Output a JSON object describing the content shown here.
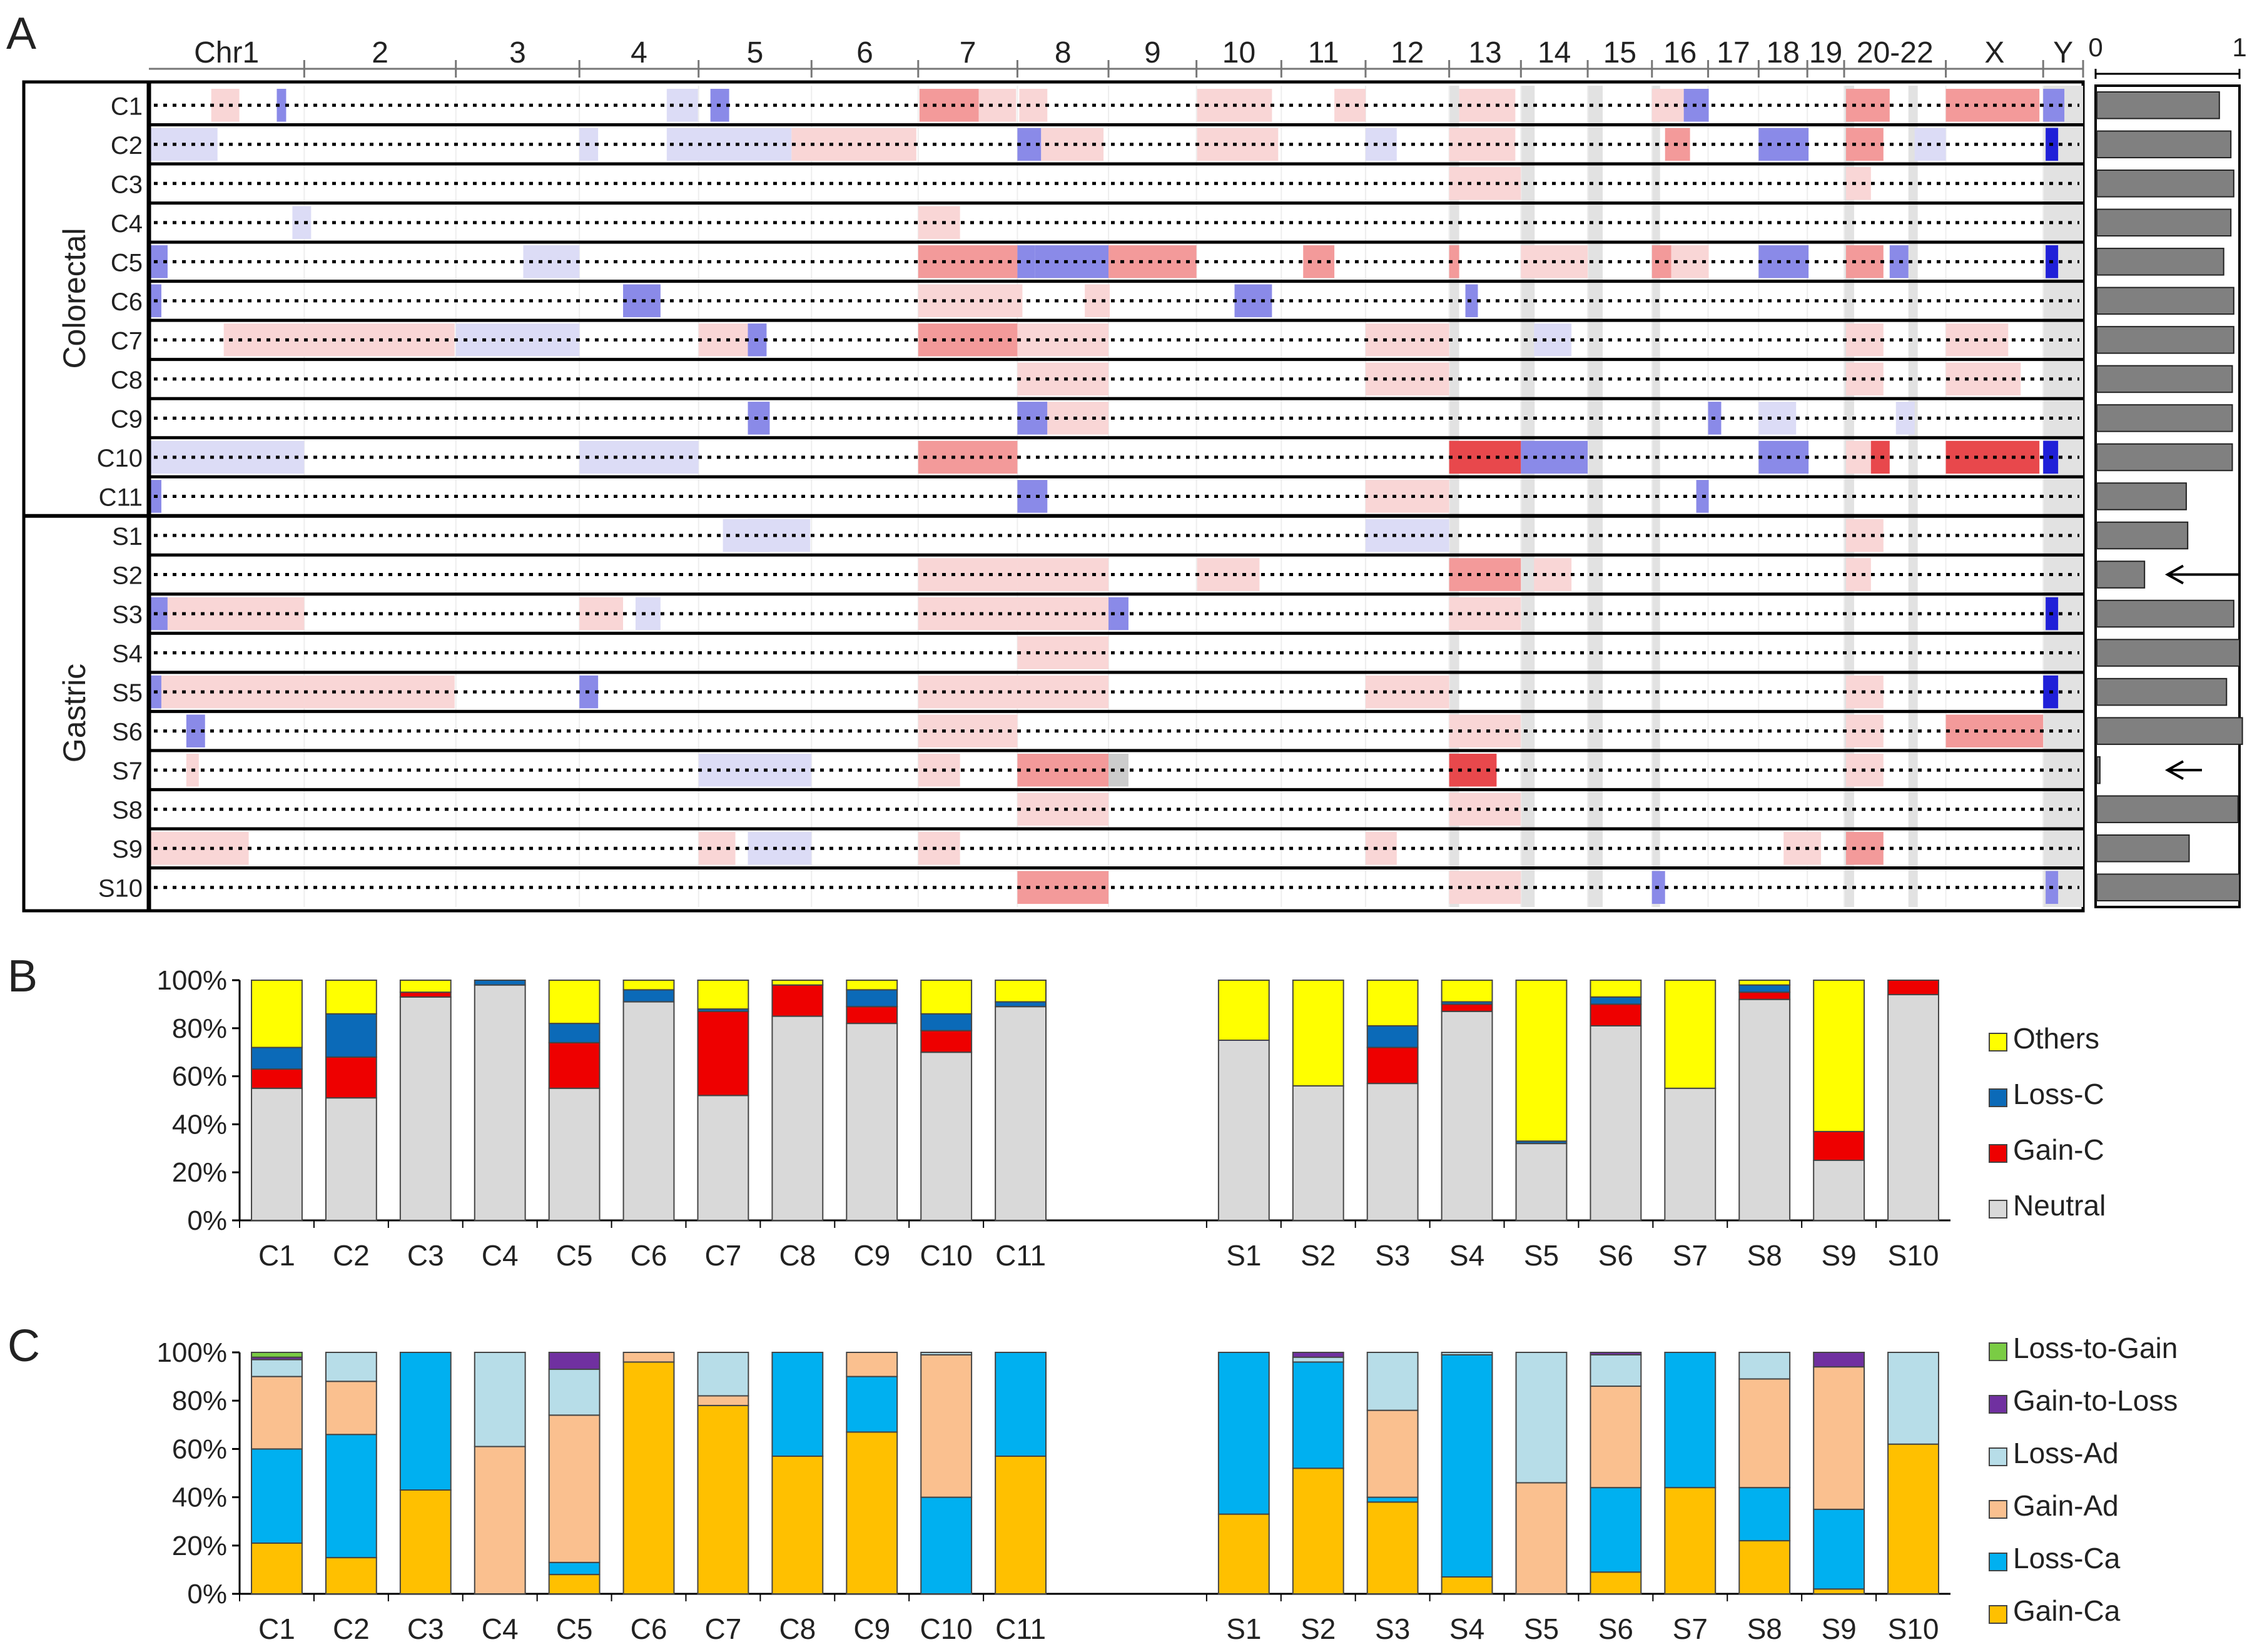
{
  "panel_labels": [
    "A",
    "B",
    "C"
  ],
  "colors": {
    "gain_light": "#f9d6d6",
    "gain_mid": "#f39a9a",
    "gain_strong": "#e8484c",
    "loss_light": "#dcdcf6",
    "loss_mid": "#8a8ae8",
    "loss_strong": "#2020d8",
    "gray_band": "#e2e2e2",
    "length_bar": "#808080",
    "others": "#ffff00",
    "loss_c": "#0b6ab8",
    "gain_c": "#ee0000",
    "neutral": "#d9d9d9",
    "loss_to_gain": "#7acc44",
    "gain_to_loss": "#7030a0",
    "loss_ad": "#b7dde8",
    "gain_ad": "#fac08f",
    "loss_ca": "#00b0f0",
    "gain_ca": "#ffc000"
  },
  "panel_a": {
    "group_labels": [
      "Colorectal",
      "Gastric"
    ],
    "samples": [
      "C1",
      "C2",
      "C3",
      "C4",
      "C5",
      "C6",
      "C7",
      "C8",
      "C9",
      "C10",
      "C11",
      "S1",
      "S2",
      "S3",
      "S4",
      "S5",
      "S6",
      "S7",
      "S8",
      "S9",
      "S10"
    ],
    "chromosomes": [
      {
        "label": "Chr1",
        "start": 0,
        "end": 249
      },
      {
        "label": "2",
        "start": 249,
        "end": 492
      },
      {
        "label": "3",
        "start": 492,
        "end": 690
      },
      {
        "label": "4",
        "start": 690,
        "end": 881
      },
      {
        "label": "5",
        "start": 881,
        "end": 1062
      },
      {
        "label": "6",
        "start": 1062,
        "end": 1233
      },
      {
        "label": "7",
        "start": 1233,
        "end": 1392
      },
      {
        "label": "8",
        "start": 1392,
        "end": 1538
      },
      {
        "label": "9",
        "start": 1538,
        "end": 1679
      },
      {
        "label": "10",
        "start": 1679,
        "end": 1815
      },
      {
        "label": "11",
        "start": 1815,
        "end": 1950
      },
      {
        "label": "12",
        "start": 1950,
        "end": 2084
      },
      {
        "label": "13",
        "start": 2084,
        "end": 2199
      },
      {
        "label": "14",
        "start": 2199,
        "end": 2306
      },
      {
        "label": "15",
        "start": 2306,
        "end": 2409
      },
      {
        "label": "16",
        "start": 2409,
        "end": 2499
      },
      {
        "label": "17",
        "start": 2499,
        "end": 2580
      },
      {
        "label": "18",
        "start": 2580,
        "end": 2658
      },
      {
        "label": "19",
        "start": 2658,
        "end": 2717
      },
      {
        "label": "20-22",
        "start": 2717,
        "end": 2880
      },
      {
        "label": "X",
        "start": 2880,
        "end": 3036
      },
      {
        "label": "Y",
        "start": 3036,
        "end": 3100
      }
    ],
    "gray_bands": [
      [
        2084,
        2100
      ],
      [
        2199,
        2221
      ],
      [
        2306,
        2330
      ],
      [
        2409,
        2422
      ],
      [
        2717,
        2733
      ],
      [
        2820,
        2835
      ],
      [
        3036,
        3100
      ]
    ],
    "length_axis": {
      "min": 0,
      "max": 1,
      "ticks": [
        0,
        1
      ]
    },
    "length_values": [
      0.86,
      0.94,
      0.96,
      0.94,
      0.89,
      0.96,
      0.96,
      0.95,
      0.95,
      0.95,
      0.63,
      0.64,
      0.34,
      0.96,
      1.0,
      0.91,
      1.02,
      0.03,
      0.99,
      0.65,
      1.0
    ],
    "arrow_rows": [
      "S2",
      "S7"
    ],
    "segments": [
      [
        "C1",
        100,
        145,
        "g1"
      ],
      [
        "C1",
        205,
        220,
        "l2"
      ],
      [
        "C1",
        830,
        880,
        "l1"
      ],
      [
        "C1",
        900,
        930,
        "l2"
      ],
      [
        "C1",
        1235,
        1330,
        "g2"
      ],
      [
        "C1",
        1330,
        1390,
        "g1"
      ],
      [
        "C1",
        1395,
        1440,
        "g1"
      ],
      [
        "C1",
        1680,
        1800,
        "g1"
      ],
      [
        "C1",
        1900,
        1950,
        "g1"
      ],
      [
        "C1",
        2100,
        2190,
        "g1"
      ],
      [
        "C1",
        2409,
        2460,
        "g1"
      ],
      [
        "C1",
        2460,
        2500,
        "l2"
      ],
      [
        "C1",
        2720,
        2790,
        "g2"
      ],
      [
        "C1",
        2880,
        3030,
        "g2"
      ],
      [
        "C1",
        3036,
        3070,
        "l2"
      ],
      [
        "C2",
        0,
        110,
        "l1"
      ],
      [
        "C2",
        690,
        720,
        "l1"
      ],
      [
        "C2",
        830,
        1030,
        "l1"
      ],
      [
        "C2",
        1030,
        1230,
        "g1"
      ],
      [
        "C2",
        1392,
        1430,
        "l2"
      ],
      [
        "C2",
        1430,
        1530,
        "g1"
      ],
      [
        "C2",
        1680,
        1810,
        "g1"
      ],
      [
        "C2",
        1950,
        2000,
        "l1"
      ],
      [
        "C2",
        2084,
        2190,
        "g1"
      ],
      [
        "C2",
        2430,
        2470,
        "g2"
      ],
      [
        "C2",
        2580,
        2660,
        "l2"
      ],
      [
        "C2",
        2720,
        2780,
        "g2"
      ],
      [
        "C2",
        2830,
        2880,
        "l1"
      ],
      [
        "C2",
        3040,
        3060,
        "l3"
      ],
      [
        "C3",
        2084,
        2199,
        "g1"
      ],
      [
        "C3",
        2720,
        2760,
        "g1"
      ],
      [
        "C4",
        230,
        260,
        "l1"
      ],
      [
        "C4",
        1233,
        1300,
        "g1"
      ],
      [
        "C5",
        0,
        30,
        "l2"
      ],
      [
        "C5",
        600,
        690,
        "l1"
      ],
      [
        "C5",
        1233,
        1392,
        "g2"
      ],
      [
        "C5",
        1392,
        1420,
        "l2"
      ],
      [
        "C5",
        1420,
        1538,
        "l2"
      ],
      [
        "C5",
        1538,
        1679,
        "g2"
      ],
      [
        "C5",
        1850,
        1900,
        "g2"
      ],
      [
        "C5",
        2084,
        2100,
        "g2"
      ],
      [
        "C5",
        2199,
        2306,
        "g1"
      ],
      [
        "C5",
        2409,
        2440,
        "g2"
      ],
      [
        "C5",
        2440,
        2500,
        "g1"
      ],
      [
        "C5",
        2580,
        2660,
        "l2"
      ],
      [
        "C5",
        2720,
        2780,
        "g2"
      ],
      [
        "C5",
        2790,
        2820,
        "l2"
      ],
      [
        "C5",
        3040,
        3060,
        "l3"
      ],
      [
        "C6",
        0,
        20,
        "l2"
      ],
      [
        "C6",
        760,
        820,
        "l2"
      ],
      [
        "C6",
        1233,
        1400,
        "g1"
      ],
      [
        "C6",
        1500,
        1540,
        "g1"
      ],
      [
        "C6",
        1740,
        1800,
        "l2"
      ],
      [
        "C6",
        2110,
        2130,
        "l2"
      ],
      [
        "C7",
        120,
        249,
        "g1"
      ],
      [
        "C7",
        249,
        490,
        "g1"
      ],
      [
        "C7",
        492,
        690,
        "l1"
      ],
      [
        "C7",
        881,
        960,
        "g1"
      ],
      [
        "C7",
        960,
        990,
        "l2"
      ],
      [
        "C7",
        1233,
        1392,
        "g2"
      ],
      [
        "C7",
        1392,
        1538,
        "g1"
      ],
      [
        "C7",
        1950,
        2084,
        "g1"
      ],
      [
        "C7",
        2220,
        2280,
        "l1"
      ],
      [
        "C7",
        2720,
        2780,
        "g1"
      ],
      [
        "C7",
        2880,
        2980,
        "g1"
      ],
      [
        "C8",
        1392,
        1538,
        "g1"
      ],
      [
        "C8",
        1950,
        2084,
        "g1"
      ],
      [
        "C8",
        2720,
        2780,
        "g1"
      ],
      [
        "C8",
        2880,
        3000,
        "g1"
      ],
      [
        "C9",
        960,
        995,
        "l2"
      ],
      [
        "C9",
        1392,
        1440,
        "l2"
      ],
      [
        "C9",
        1440,
        1538,
        "g1"
      ],
      [
        "C9",
        2499,
        2520,
        "l2"
      ],
      [
        "C9",
        2580,
        2640,
        "l1"
      ],
      [
        "C9",
        2800,
        2830,
        "l1"
      ],
      [
        "C10",
        0,
        249,
        "l1"
      ],
      [
        "C10",
        690,
        881,
        "l1"
      ],
      [
        "C10",
        1233,
        1392,
        "g2"
      ],
      [
        "C10",
        2084,
        2199,
        "g3"
      ],
      [
        "C10",
        2199,
        2306,
        "l2"
      ],
      [
        "C10",
        2580,
        2660,
        "l2"
      ],
      [
        "C10",
        2720,
        2760,
        "g1"
      ],
      [
        "C10",
        2760,
        2790,
        "g3"
      ],
      [
        "C10",
        2880,
        3030,
        "g3"
      ],
      [
        "C10",
        3036,
        3060,
        "l3"
      ],
      [
        "C11",
        0,
        20,
        "l2"
      ],
      [
        "C11",
        1392,
        1440,
        "l2"
      ],
      [
        "C11",
        1950,
        2084,
        "g1"
      ],
      [
        "C11",
        2480,
        2500,
        "l2"
      ],
      [
        "S1",
        960,
        995,
        "l2"
      ],
      [
        "S1",
        920,
        1060,
        "l1"
      ],
      [
        "S1",
        1950,
        2084,
        "l1"
      ],
      [
        "S1",
        2720,
        2780,
        "g1"
      ],
      [
        "S2",
        1233,
        1392,
        "g1"
      ],
      [
        "S2",
        1392,
        1538,
        "g1"
      ],
      [
        "S2",
        1680,
        1780,
        "g1"
      ],
      [
        "S2",
        2084,
        2199,
        "g2"
      ],
      [
        "S2",
        2220,
        2280,
        "g1"
      ],
      [
        "S2",
        2720,
        2760,
        "g1"
      ],
      [
        "S3",
        0,
        30,
        "l2"
      ],
      [
        "S3",
        30,
        249,
        "g1"
      ],
      [
        "S3",
        690,
        760,
        "g1"
      ],
      [
        "S3",
        780,
        820,
        "l1"
      ],
      [
        "S3",
        1233,
        1392,
        "g1"
      ],
      [
        "S3",
        1392,
        1538,
        "g1"
      ],
      [
        "S3",
        1538,
        1570,
        "l2"
      ],
      [
        "S3",
        2084,
        2199,
        "g1"
      ],
      [
        "S3",
        3040,
        3060,
        "l3"
      ],
      [
        "S4",
        1392,
        1538,
        "g1"
      ],
      [
        "S5",
        0,
        20,
        "l2"
      ],
      [
        "S5",
        20,
        249,
        "g1"
      ],
      [
        "S5",
        249,
        490,
        "g1"
      ],
      [
        "S5",
        690,
        720,
        "l2"
      ],
      [
        "S5",
        1233,
        1392,
        "g1"
      ],
      [
        "S5",
        1392,
        1538,
        "g1"
      ],
      [
        "S5",
        1950,
        2084,
        "g1"
      ],
      [
        "S5",
        2720,
        2780,
        "g1"
      ],
      [
        "S5",
        3036,
        3060,
        "l3"
      ],
      [
        "S6",
        60,
        90,
        "l2"
      ],
      [
        "S6",
        1233,
        1392,
        "g1"
      ],
      [
        "S6",
        2084,
        2199,
        "g1"
      ],
      [
        "S6",
        2720,
        2780,
        "g1"
      ],
      [
        "S6",
        2880,
        3036,
        "g2"
      ],
      [
        "S7",
        60,
        80,
        "g1"
      ],
      [
        "S7",
        881,
        1062,
        "l1"
      ],
      [
        "S7",
        1233,
        1300,
        "g1"
      ],
      [
        "S7",
        1392,
        1538,
        "g2"
      ],
      [
        "S7",
        1538,
        1570,
        "neutral"
      ],
      [
        "S7",
        2084,
        2160,
        "g3"
      ],
      [
        "S7",
        2720,
        2780,
        "g1"
      ],
      [
        "S8",
        1392,
        1538,
        "g1"
      ],
      [
        "S8",
        2084,
        2199,
        "g1"
      ],
      [
        "S9",
        0,
        160,
        "g1"
      ],
      [
        "S9",
        881,
        940,
        "g1"
      ],
      [
        "S9",
        960,
        1062,
        "l1"
      ],
      [
        "S9",
        1233,
        1300,
        "g1"
      ],
      [
        "S9",
        1950,
        2000,
        "g1"
      ],
      [
        "S9",
        2620,
        2680,
        "g1"
      ],
      [
        "S9",
        2720,
        2780,
        "g2"
      ],
      [
        "S10",
        1392,
        1538,
        "g2"
      ],
      [
        "S10",
        2084,
        2199,
        "g1"
      ],
      [
        "S10",
        2409,
        2430,
        "l2"
      ],
      [
        "S10",
        3040,
        3060,
        "l2"
      ]
    ]
  },
  "chart_data": [
    {
      "panel": "B",
      "type": "bar",
      "stacked": true,
      "categories": [
        "C1",
        "C2",
        "C3",
        "C4",
        "C5",
        "C6",
        "C7",
        "C8",
        "C9",
        "C10",
        "C11",
        "S1",
        "S2",
        "S3",
        "S4",
        "S5",
        "S6",
        "S7",
        "S8",
        "S9",
        "S10"
      ],
      "series": [
        {
          "name": "Neutral",
          "color_key": "neutral",
          "values": [
            55,
            51,
            93,
            98,
            55,
            91,
            52,
            85,
            82,
            70,
            89,
            75,
            56,
            57,
            87,
            32,
            81,
            55,
            92,
            25,
            94
          ]
        },
        {
          "name": "Gain-C",
          "color_key": "gain_c",
          "values": [
            8,
            17,
            2,
            0,
            19,
            0,
            35,
            13,
            7,
            9,
            0,
            0,
            0,
            15,
            3,
            0,
            9,
            0,
            3,
            12,
            6
          ]
        },
        {
          "name": "Loss-C",
          "color_key": "loss_c",
          "values": [
            9,
            18,
            0,
            2,
            8,
            5,
            1,
            0,
            7,
            7,
            2,
            0,
            0,
            9,
            1,
            1,
            3,
            0,
            3,
            0,
            0
          ]
        },
        {
          "name": "Others",
          "color_key": "others",
          "values": [
            28,
            14,
            5,
            0,
            18,
            4,
            12,
            2,
            4,
            14,
            9,
            25,
            44,
            19,
            9,
            67,
            7,
            45,
            2,
            63,
            0
          ]
        }
      ],
      "ylim": [
        0,
        100
      ],
      "yticks": [
        "0%",
        "20%",
        "40%",
        "60%",
        "80%",
        "100%"
      ],
      "legend": [
        "Others",
        "Loss-C",
        "Gain-C",
        "Neutral"
      ]
    },
    {
      "panel": "C",
      "type": "bar",
      "stacked": true,
      "categories": [
        "C1",
        "C2",
        "C3",
        "C4",
        "C5",
        "C6",
        "C7",
        "C8",
        "C9",
        "C10",
        "C11",
        "S1",
        "S2",
        "S3",
        "S4",
        "S5",
        "S6",
        "S7",
        "S8",
        "S9",
        "S10"
      ],
      "series": [
        {
          "name": "Gain-Ca",
          "color_key": "gain_ca",
          "values": [
            21,
            15,
            43,
            0,
            8,
            96,
            78,
            57,
            67,
            0,
            57,
            33,
            52,
            38,
            7,
            0,
            9,
            44,
            22,
            2,
            62
          ]
        },
        {
          "name": "Loss-Ca",
          "color_key": "loss_ca",
          "values": [
            39,
            51,
            57,
            0,
            5,
            0,
            0,
            43,
            23,
            40,
            43,
            67,
            44,
            2,
            92,
            0,
            35,
            56,
            22,
            33,
            0
          ]
        },
        {
          "name": "Gain-Ad",
          "color_key": "gain_ad",
          "values": [
            30,
            22,
            0,
            61,
            61,
            4,
            4,
            0,
            10,
            59,
            0,
            0,
            0,
            36,
            0,
            46,
            42,
            0,
            45,
            59,
            0
          ]
        },
        {
          "name": "Loss-Ad",
          "color_key": "loss_ad",
          "values": [
            7,
            12,
            0,
            39,
            19,
            0,
            18,
            0,
            0,
            1,
            0,
            0,
            2,
            24,
            1,
            54,
            13,
            0,
            11,
            0,
            38
          ]
        },
        {
          "name": "Gain-to-Loss",
          "color_key": "gain_to_loss",
          "values": [
            1,
            0,
            0,
            0,
            7,
            0,
            0,
            0,
            0,
            0,
            0,
            0,
            2,
            0,
            0,
            0,
            1,
            0,
            0,
            6,
            0
          ]
        },
        {
          "name": "Loss-to-Gain",
          "color_key": "loss_to_gain",
          "values": [
            2,
            0,
            0,
            0,
            0,
            0,
            0,
            0,
            0,
            0,
            0,
            0,
            0,
            0,
            0,
            0,
            0,
            0,
            0,
            0,
            0
          ]
        }
      ],
      "ylim": [
        0,
        100
      ],
      "yticks": [
        "0%",
        "20%",
        "40%",
        "60%",
        "80%",
        "100%"
      ],
      "legend": [
        "Loss-to-Gain",
        "Gain-to-Loss",
        "Loss-Ad",
        "Gain-Ad",
        "Loss-Ca",
        "Gain-Ca"
      ]
    }
  ]
}
